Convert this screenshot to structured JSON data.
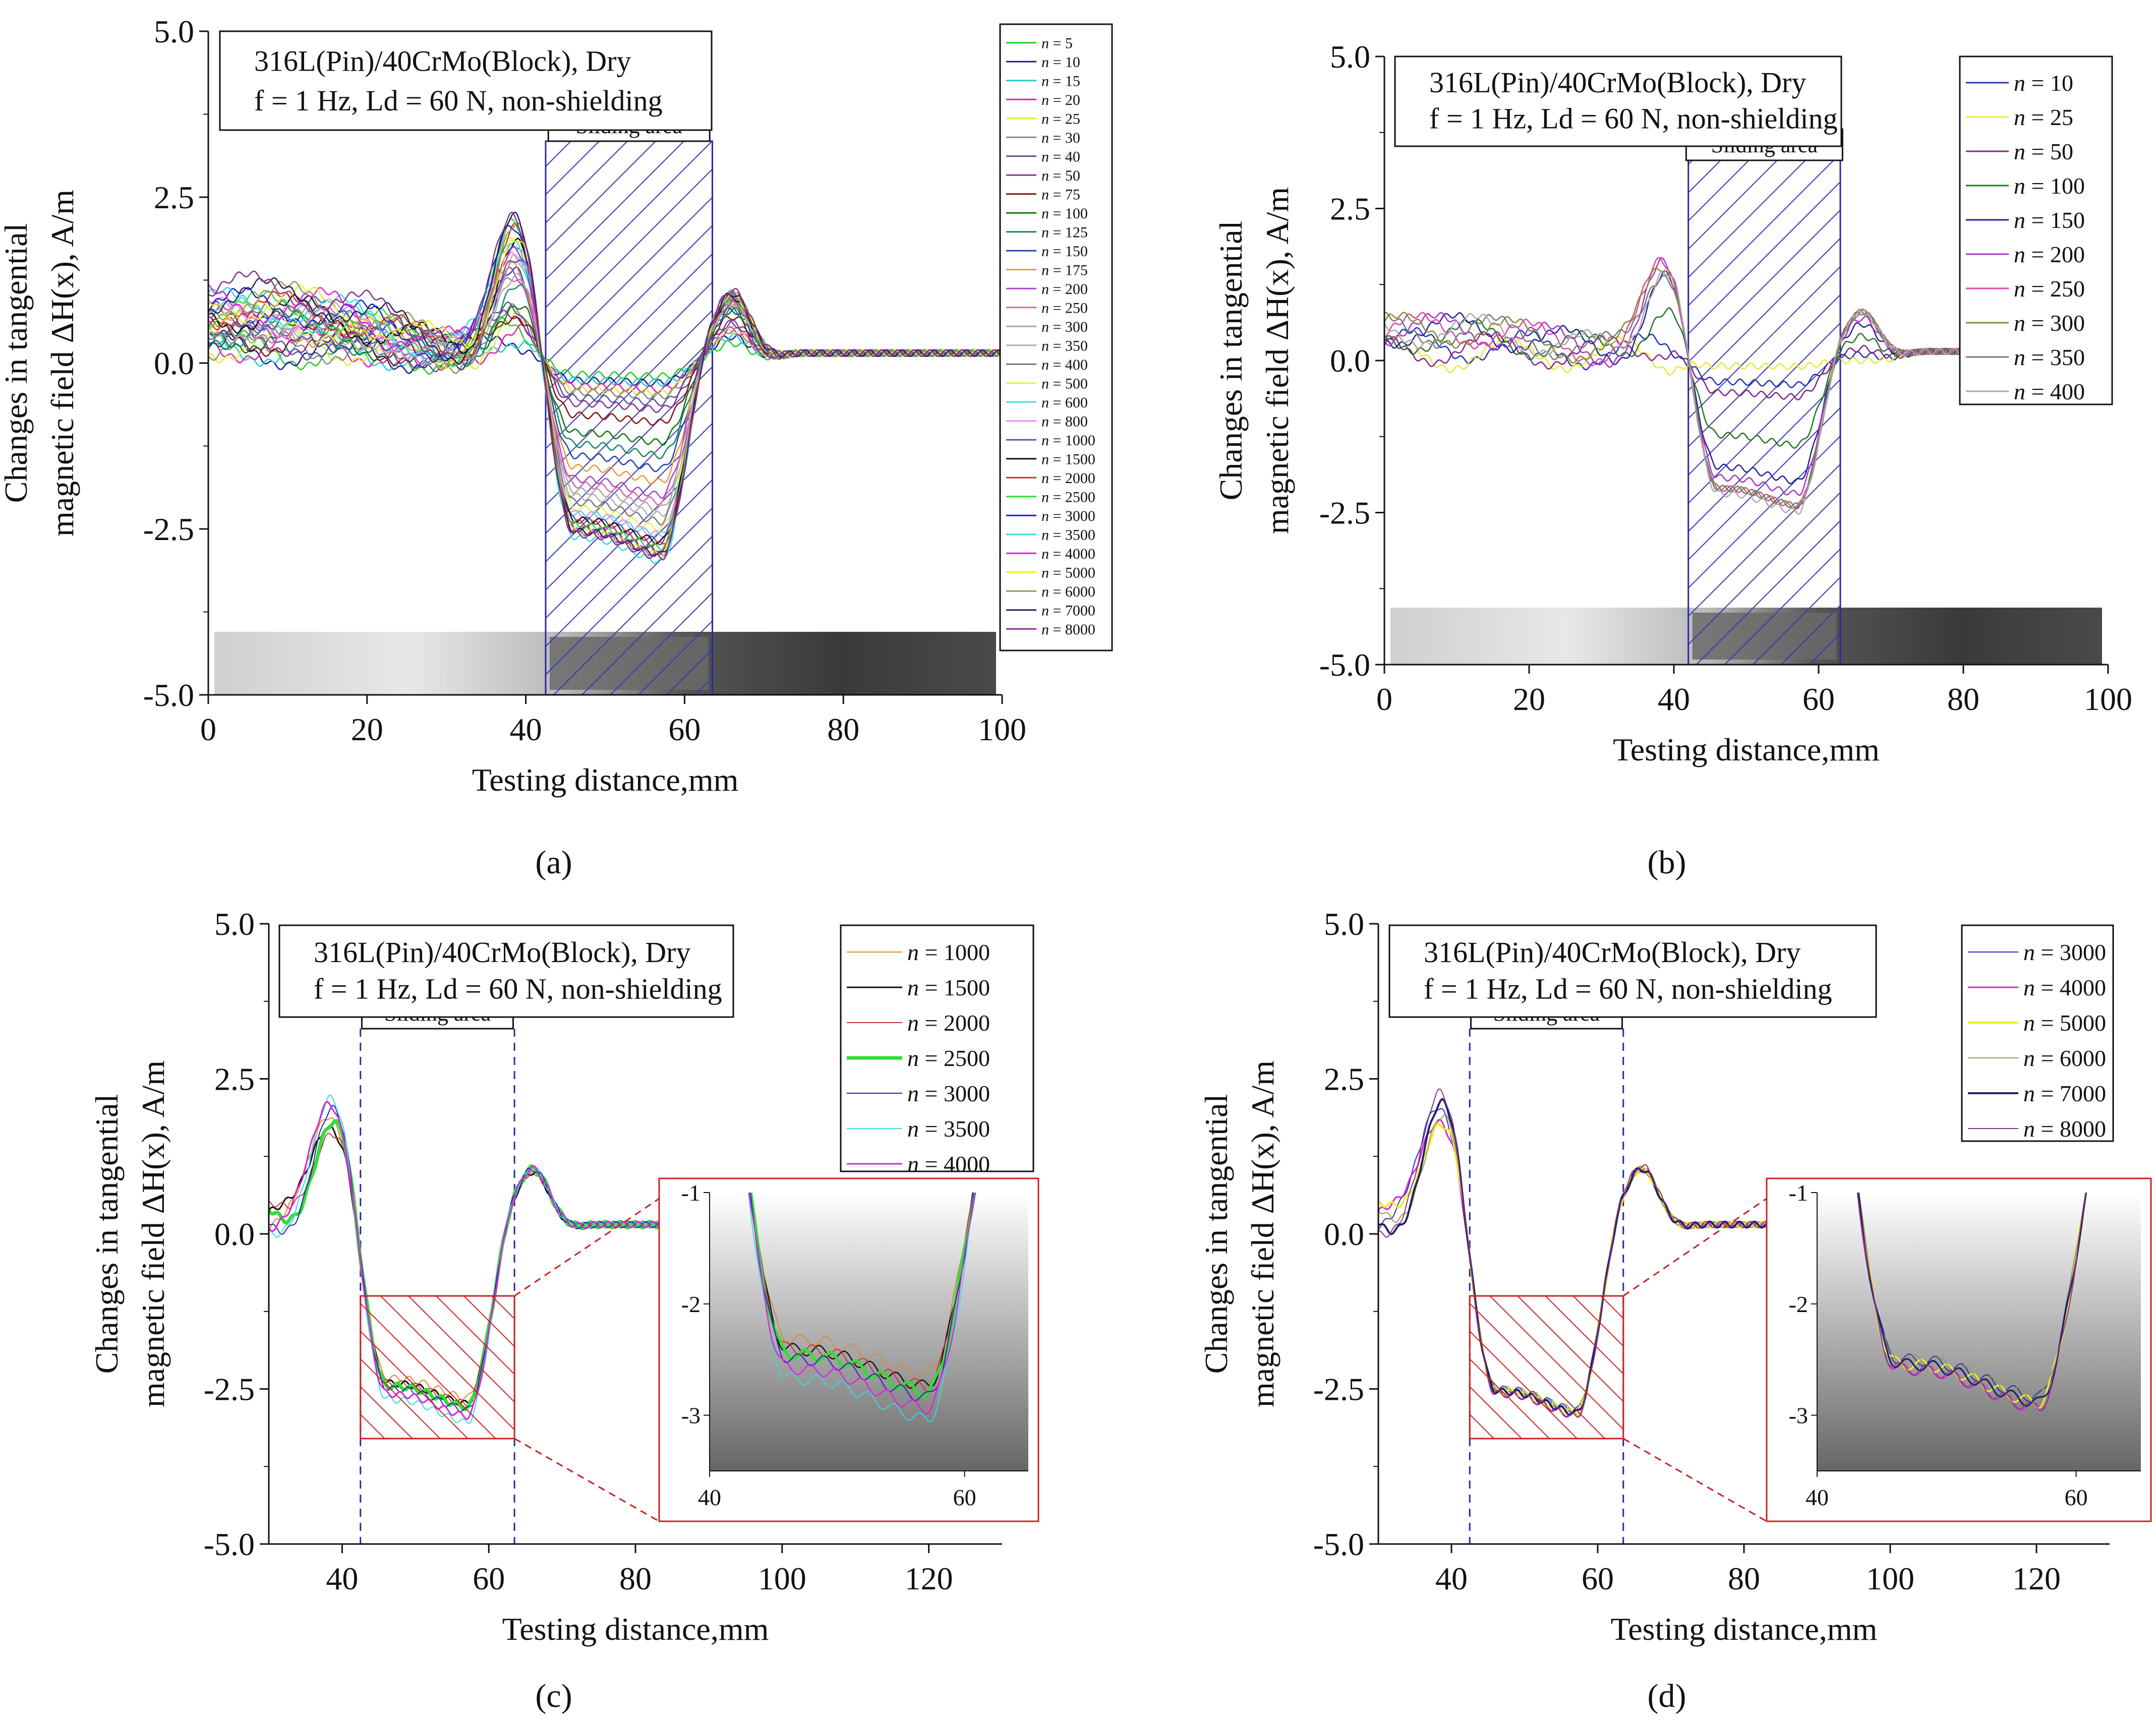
{
  "common": {
    "ylabel_line1": "Changes in tangential",
    "ylabel_line2": "magnetic field ΔH(x), A/m",
    "xlabel": "Testing distance,mm",
    "info_line1": "316L(Pin)/40CrMo(Block), Dry",
    "info_line2": "f = 1 Hz, Ld = 60 N, non-shielding",
    "sliding_label": "Sliding area",
    "legend_prefix": "n ="
  },
  "chart_data": [
    {
      "panel": "(a)",
      "type": "line",
      "xlim": [
        0,
        100
      ],
      "ylim": [
        -5,
        5
      ],
      "xticks": [
        0,
        20,
        40,
        60,
        80,
        100
      ],
      "yticks": [
        -5,
        -2.5,
        0,
        2.5,
        5
      ],
      "ytick_labels": [
        "-5.0",
        "-2.5",
        "0.0",
        "2.5",
        "5.0"
      ],
      "sliding_area_mm": [
        42.5,
        63.5
      ],
      "legend": [
        "5",
        "10",
        "15",
        "20",
        "25",
        "30",
        "40",
        "50",
        "75",
        "100",
        "125",
        "150",
        "175",
        "200",
        "250",
        "300",
        "350",
        "400",
        "500",
        "600",
        "800",
        "1000",
        "1500",
        "2000",
        "2500",
        "3000",
        "3500",
        "4000",
        "5000",
        "6000",
        "7000",
        "8000"
      ],
      "series": [
        {
          "n": 5,
          "color": "#22cc22",
          "peak": 0.4,
          "trough": -0.2,
          "post": 0.3,
          "base": 0.1
        },
        {
          "n": 10,
          "color": "#1a1a9a",
          "peak": 0.3,
          "trough": -0.3,
          "post": 0.4,
          "base": 0.1
        },
        {
          "n": 15,
          "color": "#22cccc",
          "peak": 0.4,
          "trough": -0.3,
          "post": 0.4,
          "base": 0.15
        },
        {
          "n": 20,
          "color": "#dd22aa",
          "peak": 0.5,
          "trough": -0.4,
          "post": 0.5,
          "base": 0.2
        },
        {
          "n": 25,
          "color": "#e8e830",
          "peak": 0.5,
          "trough": -0.45,
          "post": 0.5,
          "base": 0.2
        },
        {
          "n": 30,
          "color": "#888888",
          "peak": 0.5,
          "trough": -0.5,
          "post": 0.5,
          "base": 0.2
        },
        {
          "n": 40,
          "color": "#555599",
          "peak": 0.6,
          "trough": -0.6,
          "post": 0.6,
          "base": 0.25
        },
        {
          "n": 50,
          "color": "#883399",
          "peak": 0.7,
          "trough": -0.7,
          "post": 0.6,
          "base": 0.3
        },
        {
          "n": 75,
          "color": "#881111",
          "peak": 0.8,
          "trough": -0.9,
          "post": 0.7,
          "base": 0.3
        },
        {
          "n": 100,
          "color": "#117711",
          "peak": 0.9,
          "trough": -1.2,
          "post": 0.8,
          "base": 0.35
        },
        {
          "n": 125,
          "color": "#118866",
          "peak": 1.0,
          "trough": -1.4,
          "post": 0.8,
          "base": 0.4
        },
        {
          "n": 150,
          "color": "#2244aa",
          "peak": 1.1,
          "trough": -1.6,
          "post": 0.8,
          "base": 0.4
        },
        {
          "n": 175,
          "color": "#ee9933",
          "peak": 1.2,
          "trough": -1.8,
          "post": 0.9,
          "base": 0.45
        },
        {
          "n": 200,
          "color": "#aa44cc",
          "peak": 1.3,
          "trough": -2.0,
          "post": 0.9,
          "base": 0.5
        },
        {
          "n": 250,
          "color": "#dd66aa",
          "peak": 1.4,
          "trough": -2.1,
          "post": 0.9,
          "base": 0.5
        },
        {
          "n": 300,
          "color": "#aaaaaa",
          "peak": 1.4,
          "trough": -2.2,
          "post": 0.9,
          "base": 0.5
        },
        {
          "n": 350,
          "color": "#b0b0b0",
          "peak": 1.5,
          "trough": -2.3,
          "post": 0.9,
          "base": 0.5
        },
        {
          "n": 400,
          "color": "#777777",
          "peak": 1.5,
          "trough": -2.4,
          "post": 0.9,
          "base": 0.55
        },
        {
          "n": 500,
          "color": "#eeee44",
          "peak": 1.6,
          "trough": -2.5,
          "post": 1.0,
          "base": 0.55
        },
        {
          "n": 600,
          "color": "#44dddd",
          "peak": 1.6,
          "trough": -2.6,
          "post": 1.0,
          "base": 0.6
        },
        {
          "n": 800,
          "color": "#ee88ee",
          "peak": 1.7,
          "trough": -2.6,
          "post": 1.0,
          "base": 0.6
        },
        {
          "n": 1000,
          "color": "#5555aa",
          "peak": 1.7,
          "trough": -2.7,
          "post": 1.0,
          "base": 0.65
        },
        {
          "n": 1500,
          "color": "#111111",
          "peak": 1.8,
          "trough": -2.7,
          "post": 1.0,
          "base": 0.65
        },
        {
          "n": 2000,
          "color": "#cc3333",
          "peak": 1.8,
          "trough": -2.75,
          "post": 1.0,
          "base": 0.7
        },
        {
          "n": 2500,
          "color": "#33dd33",
          "peak": 1.8,
          "trough": -2.8,
          "post": 1.0,
          "base": 0.7
        },
        {
          "n": 3000,
          "color": "#2222cc",
          "peak": 1.85,
          "trough": -2.85,
          "post": 1.05,
          "base": 0.75
        },
        {
          "n": 3500,
          "color": "#33dddd",
          "peak": 1.85,
          "trough": -3.0,
          "post": 1.05,
          "base": 0.75
        },
        {
          "n": 4000,
          "color": "#dd22dd",
          "peak": 1.85,
          "trough": -2.9,
          "post": 1.05,
          "base": 0.8
        },
        {
          "n": 5000,
          "color": "#eeee22",
          "peak": 1.9,
          "trough": -2.9,
          "post": 1.05,
          "base": 0.8
        },
        {
          "n": 6000,
          "color": "#999955",
          "peak": 1.9,
          "trough": -2.85,
          "post": 1.05,
          "base": 0.85
        },
        {
          "n": 7000,
          "color": "#222266",
          "peak": 1.9,
          "trough": -2.9,
          "post": 1.05,
          "base": 0.9
        },
        {
          "n": 8000,
          "color": "#883388",
          "peak": 1.95,
          "trough": -2.95,
          "post": 1.1,
          "base": 1.0
        }
      ]
    },
    {
      "panel": "(b)",
      "type": "line",
      "xlim": [
        0,
        100
      ],
      "ylim": [
        -5,
        5
      ],
      "xticks": [
        0,
        20,
        40,
        60,
        80,
        100
      ],
      "yticks": [
        -5,
        -2.5,
        0,
        2.5,
        5
      ],
      "ytick_labels": [
        "-5.0",
        "-2.5",
        "0.0",
        "2.5",
        "5.0"
      ],
      "sliding_area_mm": [
        42.0,
        63.0
      ],
      "legend": [
        "10",
        "25",
        "50",
        "100",
        "150",
        "200",
        "250",
        "300",
        "350",
        "400"
      ],
      "series": [
        {
          "n": 10,
          "color": "#2233bb",
          "peak": 0.1,
          "trough": -0.4,
          "post": 0.1,
          "base": 0.15
        },
        {
          "n": 25,
          "color": "#e8e830",
          "peak": -0.1,
          "trough": -0.1,
          "post": 0.0,
          "base": 0.0
        },
        {
          "n": 50,
          "color": "#882288",
          "peak": 0.2,
          "trough": -0.6,
          "post": 0.2,
          "base": 0.1
        },
        {
          "n": 100,
          "color": "#227722",
          "peak": 0.8,
          "trough": -1.4,
          "post": 0.4,
          "base": 0.3
        },
        {
          "n": 150,
          "color": "#222299",
          "peak": 1.2,
          "trough": -2.0,
          "post": 0.6,
          "base": 0.4
        },
        {
          "n": 200,
          "color": "#aa33cc",
          "peak": 1.3,
          "trough": -2.2,
          "post": 0.7,
          "base": 0.4
        },
        {
          "n": 250,
          "color": "#dd44aa",
          "peak": 1.4,
          "trough": -2.4,
          "post": 0.8,
          "base": 0.4
        },
        {
          "n": 300,
          "color": "#888833",
          "peak": 1.5,
          "trough": -2.4,
          "post": 0.8,
          "base": 0.4
        },
        {
          "n": 350,
          "color": "#777777",
          "peak": 1.5,
          "trough": -2.4,
          "post": 0.8,
          "base": 0.4
        },
        {
          "n": 400,
          "color": "#aaaaaa",
          "peak": 1.5,
          "trough": -2.5,
          "post": 0.8,
          "base": 0.4
        }
      ]
    },
    {
      "panel": "(c)",
      "type": "line",
      "xlim": [
        30,
        130
      ],
      "ylim": [
        -5,
        5
      ],
      "xticks": [
        40,
        60,
        80,
        100,
        120
      ],
      "yticks": [
        -5,
        -2.5,
        0,
        2.5,
        5
      ],
      "ytick_labels": [
        "-5.0",
        "-2.5",
        "0.0",
        "2.5",
        "5.0"
      ],
      "sliding_area_mm": [
        42.5,
        63.5
      ],
      "zoom_box": {
        "x": [
          42.5,
          63.5
        ],
        "y": [
          -3.3,
          -1.0
        ]
      },
      "inset": {
        "xlim": [
          40,
          65
        ],
        "ylim": [
          -3.5,
          -1.0
        ],
        "xticks": [
          40,
          60
        ],
        "yticks": [
          -3,
          -2,
          -1
        ]
      },
      "legend": [
        "1000",
        "1500",
        "2000",
        "2500",
        "3000",
        "3500",
        "4000"
      ],
      "series": [
        {
          "n": 1000,
          "color": "#dd8833",
          "peak": 1.7,
          "trough": -2.65,
          "post": 1.0,
          "width": 2
        },
        {
          "n": 1500,
          "color": "#111111",
          "peak": 1.75,
          "trough": -2.75,
          "post": 1.0,
          "width": 3
        },
        {
          "n": 2000,
          "color": "#cc3333",
          "peak": 1.75,
          "trough": -2.75,
          "post": 1.0,
          "width": 2
        },
        {
          "n": 2500,
          "color": "#33dd33",
          "peak": 1.8,
          "trough": -2.8,
          "post": 1.05,
          "width": 7
        },
        {
          "n": 3000,
          "color": "#2222bb",
          "peak": 1.8,
          "trough": -2.85,
          "post": 1.05,
          "width": 2
        },
        {
          "n": 3500,
          "color": "#33dddd",
          "peak": 1.85,
          "trough": -3.05,
          "post": 1.05,
          "width": 2
        },
        {
          "n": 4000,
          "color": "#dd22dd",
          "peak": 1.85,
          "trough": -2.95,
          "post": 1.05,
          "width": 3
        }
      ]
    },
    {
      "panel": "(d)",
      "type": "line",
      "xlim": [
        30,
        130
      ],
      "ylim": [
        -5,
        5
      ],
      "xticks": [
        40,
        60,
        80,
        100,
        120
      ],
      "yticks": [
        -5,
        -2.5,
        0,
        2.5,
        5
      ],
      "ytick_labels": [
        "-5.0",
        "-2.5",
        "0.0",
        "2.5",
        "5.0"
      ],
      "sliding_area_mm": [
        42.5,
        63.5
      ],
      "zoom_box": {
        "x": [
          42.5,
          63.5
        ],
        "y": [
          -3.3,
          -1.0
        ]
      },
      "inset": {
        "xlim": [
          40,
          65
        ],
        "ylim": [
          -3.5,
          -1.0
        ],
        "xticks": [
          40,
          60
        ],
        "yticks": [
          -3,
          -2,
          -1
        ]
      },
      "legend": [
        "3000",
        "4000",
        "5000",
        "6000",
        "7000",
        "8000"
      ],
      "series": [
        {
          "n": 3000,
          "color": "#2233bb",
          "peak": 1.85,
          "trough": -2.85,
          "post": 1.05,
          "width": 2
        },
        {
          "n": 4000,
          "color": "#dd22dd",
          "peak": 1.85,
          "trough": -2.95,
          "post": 1.05,
          "width": 3
        },
        {
          "n": 5000,
          "color": "#eeee22",
          "peak": 1.9,
          "trough": -2.9,
          "post": 1.05,
          "width": 4
        },
        {
          "n": 6000,
          "color": "#999955",
          "peak": 1.9,
          "trough": -2.85,
          "post": 1.05,
          "width": 2
        },
        {
          "n": 7000,
          "color": "#222266",
          "peak": 1.9,
          "trough": -2.9,
          "post": 1.05,
          "width": 4
        },
        {
          "n": 8000,
          "color": "#883388",
          "peak": 1.95,
          "trough": -2.95,
          "post": 1.1,
          "width": 2
        }
      ]
    }
  ]
}
